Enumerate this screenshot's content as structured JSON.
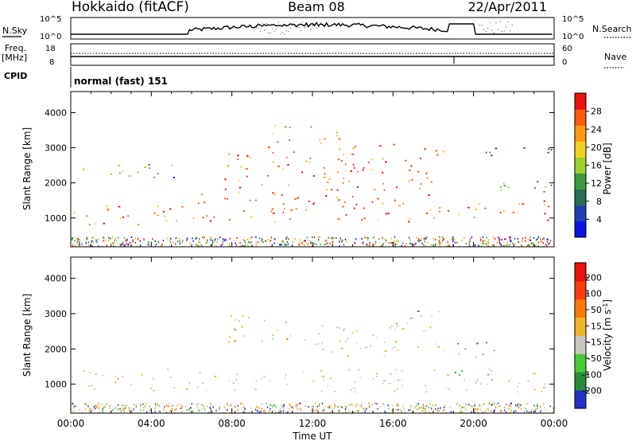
{
  "header": {
    "title": "Hokkaido (fitACF)",
    "beam": "Beam 08",
    "date": "22/Apr/2011"
  },
  "status_panels": {
    "nsky_label": "N.Sky",
    "nsky_ticks": [
      "10^5",
      "10^0"
    ],
    "nsearch_label": "N.Search",
    "nsearch_ticks": [
      "10^5",
      "10^0"
    ],
    "freq_label": "Freq.",
    "freq_unit": "[MHz]",
    "freq_ticks": [
      "18",
      "8"
    ],
    "nave_label": "Nave",
    "nave_ticks": [
      "60",
      "0"
    ],
    "cpid_label": "CPID",
    "cpid_value": "normal (fast) 151"
  },
  "chart_data": [
    {
      "type": "heatmap",
      "panel": "power",
      "ylabel": "Slant Range [km]",
      "ylim": [
        180,
        4600
      ],
      "y_ticks": [
        "1000",
        "2000",
        "3000",
        "4000"
      ],
      "x_ticks": [
        "00:00",
        "04:00",
        "08:00",
        "12:00",
        "16:00",
        "20:00",
        "00:00"
      ],
      "xlim_hours": [
        0,
        24
      ],
      "colorbar": {
        "label": "Power [dB]",
        "ticks": [
          "28",
          "24",
          "20",
          "16",
          "12",
          "8",
          "4"
        ],
        "colors": [
          "#0a14e6",
          "#1f3fb0",
          "#2a6e5a",
          "#3c9a3c",
          "#9bd22e",
          "#f0d21e",
          "#ff9a14",
          "#ff5a0a",
          "#ee0f0f"
        ]
      },
      "echo_regions": [
        {
          "t0": 0.0,
          "t1": 5.9,
          "r0": 780,
          "r1": 1380,
          "level": "high"
        },
        {
          "t0": 5.9,
          "t1": 18.8,
          "r0": 900,
          "r1": 1700,
          "level": "high"
        },
        {
          "t0": 19.2,
          "t1": 24.0,
          "r0": 950,
          "r1": 1500,
          "level": "high"
        },
        {
          "t0": 0.0,
          "t1": 5.5,
          "r0": 2150,
          "r1": 2550,
          "level": "low"
        },
        {
          "t0": 7.5,
          "t1": 18.5,
          "r0": 1750,
          "r1": 3100,
          "level": "high"
        },
        {
          "t0": 10.0,
          "t1": 13.5,
          "r0": 3100,
          "r1": 3700,
          "level": "mid"
        },
        {
          "t0": 19.5,
          "t1": 24.0,
          "r0": 1750,
          "r1": 2100,
          "level": "low"
        },
        {
          "t0": 20.5,
          "t1": 24.0,
          "r0": 2700,
          "r1": 3050,
          "level": "low"
        }
      ]
    },
    {
      "type": "heatmap",
      "panel": "velocity",
      "ylabel": "Slant Range [km]",
      "ylim": [
        180,
        4600
      ],
      "y_ticks": [
        "1000",
        "2000",
        "3000",
        "4000"
      ],
      "x_ticks": [
        "00:00",
        "04:00",
        "08:00",
        "12:00",
        "16:00",
        "20:00",
        "00:00"
      ],
      "xlabel": "Time UT",
      "xlim_hours": [
        0,
        24
      ],
      "colorbar": {
        "label": "Velocity [m s^-1]",
        "ticks": [
          "200",
          "100",
          "50",
          "15",
          "-15",
          "-50",
          "-100",
          "-200"
        ],
        "colors": [
          "#2030c8",
          "#2a8a3a",
          "#4cc83a",
          "#c8c8c0",
          "#f0b428",
          "#ff7a0a",
          "#ff3a0a",
          "#ee0f0f"
        ]
      },
      "echo_regions": [
        {
          "t0": 0.0,
          "t1": 24.0,
          "r0": 800,
          "r1": 1450,
          "level": "ground"
        },
        {
          "t0": 7.5,
          "t1": 11.0,
          "r0": 2100,
          "r1": 3000,
          "level": "negative"
        },
        {
          "t0": 11.0,
          "t1": 18.5,
          "r0": 1800,
          "r1": 2700,
          "level": "ground"
        },
        {
          "t0": 15.5,
          "t1": 18.5,
          "r0": 2600,
          "r1": 3100,
          "level": "positive"
        },
        {
          "t0": 19.0,
          "t1": 21.0,
          "r0": 1000,
          "r1": 2200,
          "level": "positive"
        }
      ]
    }
  ]
}
